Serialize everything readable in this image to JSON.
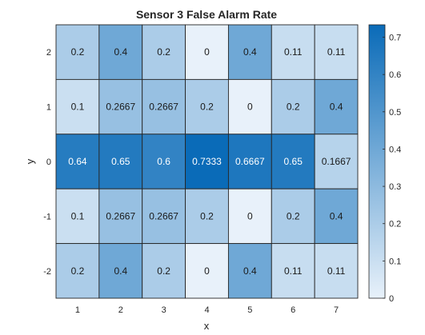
{
  "chart_data": {
    "type": "heatmap",
    "title": "Sensor 3 False Alarm Rate",
    "xlabel": "x",
    "ylabel": "y",
    "x_categories": [
      "1",
      "2",
      "3",
      "4",
      "5",
      "6",
      "7"
    ],
    "y_categories": [
      "2",
      "1",
      "0",
      "-1",
      "-2"
    ],
    "cells": [
      [
        "0.2",
        "0.4",
        "0.2",
        "0",
        "0.4",
        "0.11",
        "0.11"
      ],
      [
        "0.1",
        "0.2667",
        "0.2667",
        "0.2",
        "0",
        "0.2",
        "0.4"
      ],
      [
        "0.64",
        "0.65",
        "0.6",
        "0.7333",
        "0.6667",
        "0.65",
        "0.1667"
      ],
      [
        "0.1",
        "0.2667",
        "0.2667",
        "0.2",
        "0",
        "0.2",
        "0.4"
      ],
      [
        "0.2",
        "0.4",
        "0.2",
        "0",
        "0.4",
        "0.11",
        "0.11"
      ]
    ],
    "colorbar": {
      "min": 0,
      "max": 0.7333,
      "ticks": [
        "0",
        "0.1",
        "0.2",
        "0.3",
        "0.4",
        "0.5",
        "0.6",
        "0.7"
      ]
    },
    "colormap": {
      "low": "#e8f1fa",
      "high": "#0a6bb8"
    },
    "grid_color": "#262626"
  }
}
